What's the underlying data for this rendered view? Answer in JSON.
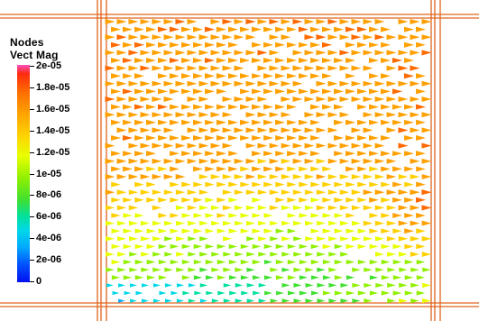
{
  "legend": {
    "title_line1": "Nodes",
    "title_line2": "Vect Mag",
    "ticks": [
      "2e-05",
      "1.8e-05",
      "1.6e-05",
      "1.4e-05",
      "1.2e-05",
      "1e-05",
      "8e-06",
      "6e-06",
      "4e-06",
      "2e-06",
      "0"
    ],
    "range": [
      0,
      2e-05
    ],
    "colormap": [
      "#0010f0",
      "#0050ff",
      "#00a8ff",
      "#00d8e8",
      "#00e0a0",
      "#40e030",
      "#90f000",
      "#e8ff00",
      "#ffd000",
      "#ffa000",
      "#ff6a00",
      "#ff2a10",
      "#ff4fc0"
    ]
  },
  "colors": {
    "frame_line": "#e0641e",
    "background": "#ffffff"
  },
  "glyph_shape": "cone-icon"
}
